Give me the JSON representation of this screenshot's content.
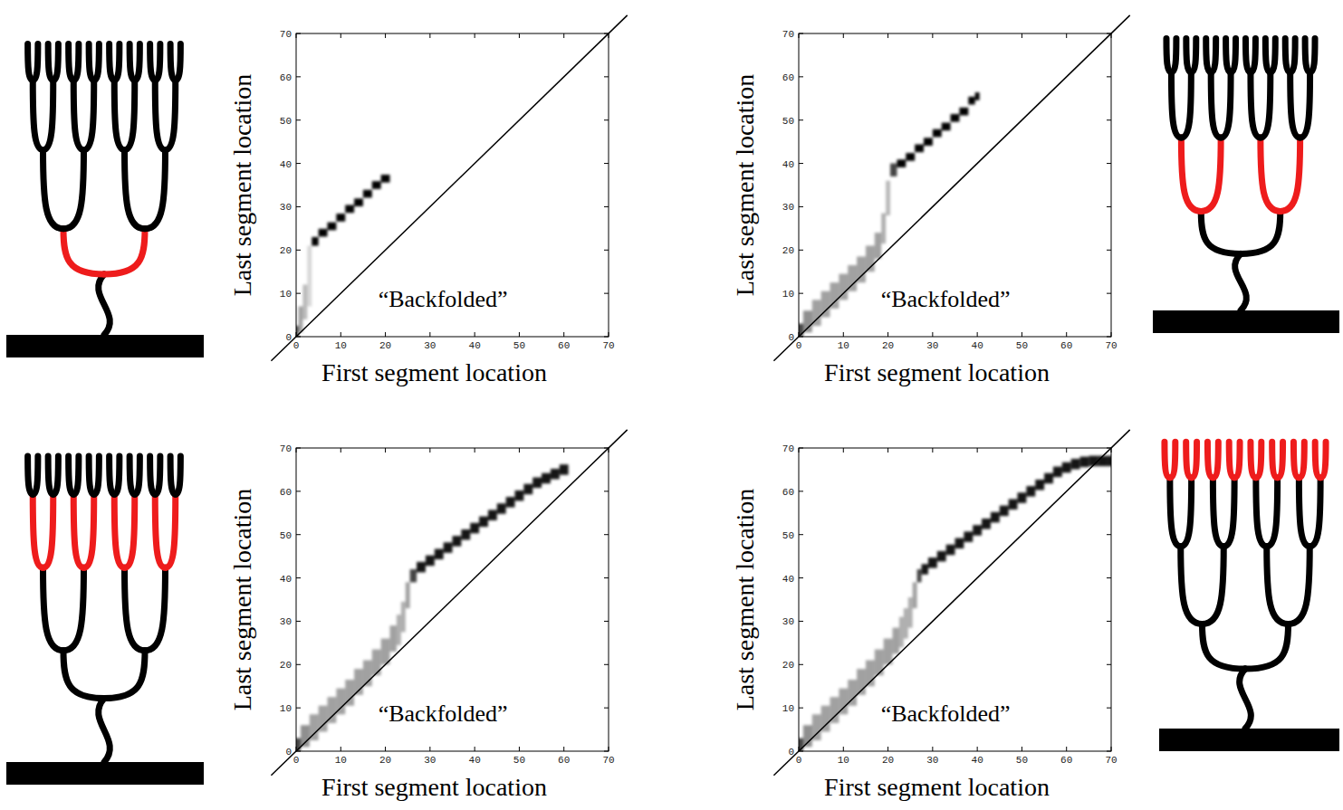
{
  "chart_data": [
    {
      "type": "density",
      "x_label": "First segment location",
      "y_label": "Last segment location",
      "annotation": "“Backfolded”",
      "highlight_generation": 1,
      "xlim": [
        0,
        70
      ],
      "ylim": [
        0,
        70
      ],
      "xticks": [
        0,
        10,
        20,
        30,
        40,
        50,
        60,
        70
      ],
      "yticks": [
        0,
        10,
        20,
        30,
        40,
        50,
        60,
        70
      ],
      "x": [
        0,
        1,
        2,
        3,
        4,
        6,
        8,
        10,
        12,
        14,
        16,
        18,
        20
      ],
      "values": [
        1,
        4,
        8,
        14,
        22,
        24,
        25.5,
        27.5,
        29.5,
        31,
        33,
        35,
        36.5
      ],
      "spread": [
        1.5,
        3,
        4,
        7,
        1,
        0.9,
        0.9,
        0.9,
        0.9,
        0.9,
        0.9,
        0.9,
        0.9
      ]
    },
    {
      "type": "density",
      "x_label": "First segment location",
      "y_label": "Last segment location",
      "annotation": "“Backfolded”",
      "highlight_generation": 2,
      "xlim": [
        0,
        70
      ],
      "ylim": [
        0,
        70
      ],
      "xticks": [
        0,
        10,
        20,
        30,
        40,
        50,
        60,
        70
      ],
      "yticks": [
        0,
        10,
        20,
        30,
        40,
        50,
        60,
        70
      ],
      "x": [
        0,
        2,
        4,
        6,
        8,
        10,
        12,
        14,
        16,
        18,
        19,
        20,
        21,
        23,
        25,
        27,
        29,
        31,
        33,
        35,
        37,
        39,
        40
      ],
      "values": [
        1.5,
        3.5,
        5.5,
        7.5,
        9.5,
        11.5,
        13.5,
        15.5,
        18,
        21,
        25,
        32,
        38.5,
        40,
        41.5,
        43.5,
        45,
        47,
        48.5,
        50.5,
        52,
        54.5,
        55.5
      ],
      "spread": [
        1.5,
        2.5,
        3,
        3,
        3,
        3,
        3,
        3,
        3,
        3,
        3.5,
        4,
        1.5,
        0.9,
        0.9,
        0.9,
        0.9,
        0.9,
        0.9,
        0.9,
        0.9,
        0.9,
        0.9
      ]
    },
    {
      "type": "density",
      "x_label": "First segment location",
      "y_label": "Last segment location",
      "annotation": "“Backfolded”",
      "highlight_generation": 3,
      "xlim": [
        0,
        70
      ],
      "ylim": [
        0,
        70
      ],
      "xticks": [
        0,
        10,
        20,
        30,
        40,
        50,
        60,
        70
      ],
      "yticks": [
        0,
        10,
        20,
        30,
        40,
        50,
        60,
        70
      ],
      "x": [
        0,
        2,
        4,
        6,
        8,
        10,
        12,
        14,
        16,
        18,
        20,
        22,
        23,
        24,
        25,
        26,
        28,
        30,
        32,
        34,
        36,
        38,
        40,
        42,
        44,
        46,
        48,
        50,
        52,
        54,
        56,
        58,
        60
      ],
      "values": [
        1.5,
        3.5,
        5.5,
        7.5,
        9.5,
        11.5,
        13.5,
        16,
        18,
        20.5,
        23,
        26,
        28,
        31,
        36,
        40.5,
        42.5,
        44,
        45.5,
        47,
        48.5,
        50,
        51.5,
        53,
        54.5,
        56,
        57.5,
        59,
        60.5,
        62,
        63,
        64,
        65
      ],
      "spread": [
        1.5,
        2.5,
        3,
        3,
        3,
        3,
        3,
        3,
        3,
        3,
        3,
        3,
        3.5,
        3.5,
        3,
        1.5,
        1.2,
        1.2,
        1.2,
        1.2,
        1.2,
        1.2,
        1.2,
        1.2,
        1.2,
        1.2,
        1.2,
        1.2,
        1.2,
        1.2,
        1.2,
        1.2,
        1.2
      ]
    },
    {
      "type": "density",
      "x_label": "First segment location",
      "y_label": "Last segment location",
      "annotation": "“Backfolded”",
      "highlight_generation": 4,
      "xlim": [
        0,
        70
      ],
      "ylim": [
        0,
        70
      ],
      "xticks": [
        0,
        10,
        20,
        30,
        40,
        50,
        60,
        70
      ],
      "yticks": [
        0,
        10,
        20,
        30,
        40,
        50,
        60,
        70
      ],
      "x": [
        0,
        2,
        4,
        6,
        8,
        10,
        12,
        14,
        16,
        18,
        20,
        22,
        23,
        24,
        25,
        26,
        27,
        28,
        30,
        32,
        34,
        36,
        38,
        40,
        42,
        44,
        46,
        48,
        50,
        52,
        54,
        56,
        58,
        60,
        62,
        64,
        66,
        68,
        70
      ],
      "values": [
        1.5,
        3.5,
        5.5,
        7.5,
        9.5,
        11.5,
        13.5,
        16,
        18,
        20.5,
        23,
        25.5,
        27.5,
        29.5,
        32,
        36,
        40.5,
        42,
        43.5,
        45,
        46.5,
        48,
        49.5,
        51,
        52.5,
        54,
        55.5,
        57,
        58.5,
        60,
        61.5,
        63,
        64.5,
        65.5,
        66.3,
        66.8,
        67,
        67,
        67
      ],
      "spread": [
        1.5,
        2.5,
        3,
        3,
        3,
        3,
        3,
        3,
        3,
        3,
        3,
        3,
        3.5,
        3.5,
        3.5,
        3,
        1.5,
        1.2,
        1.2,
        1.2,
        1.2,
        1.2,
        1.2,
        1.2,
        1.2,
        1.2,
        1.2,
        1.2,
        1.2,
        1.2,
        1.2,
        1.2,
        1.2,
        1.2,
        1.2,
        1.2,
        1.2,
        1.2,
        1.2
      ]
    }
  ]
}
